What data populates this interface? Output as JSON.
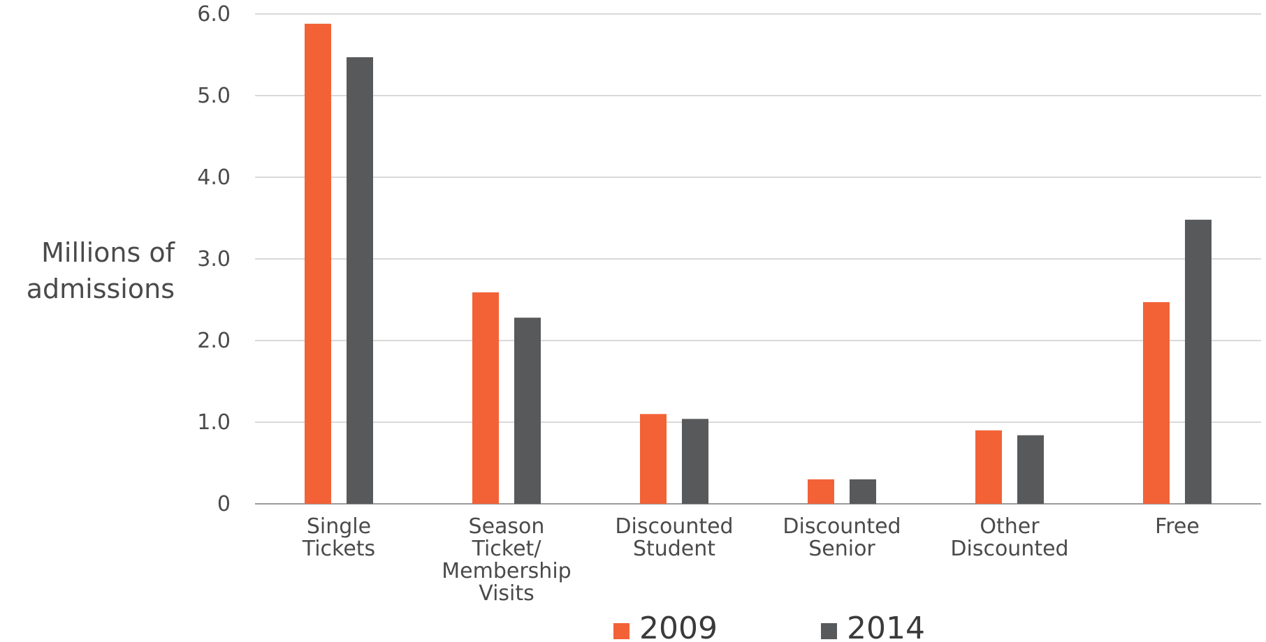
{
  "chart_data": {
    "type": "bar",
    "ylabel": [
      "Millions of",
      "admissions"
    ],
    "ylim": [
      0,
      6
    ],
    "yticks": [
      {
        "value": 0,
        "label": "0"
      },
      {
        "value": 1,
        "label": "1.0"
      },
      {
        "value": 2,
        "label": "2.0"
      },
      {
        "value": 3,
        "label": "3.0"
      },
      {
        "value": 4,
        "label": "4.0"
      },
      {
        "value": 5,
        "label": "5.0"
      },
      {
        "value": 6,
        "label": "6.0"
      }
    ],
    "grid": true,
    "legend_position": "bottom",
    "categories": [
      [
        "Single",
        "Tickets"
      ],
      [
        "Season",
        "Ticket/",
        "Membership",
        "Visits"
      ],
      [
        "Discounted",
        "Student"
      ],
      [
        "Discounted",
        "Senior"
      ],
      [
        "Other",
        "Discounted"
      ],
      [
        "Free"
      ]
    ],
    "series": [
      {
        "name": "2009",
        "color": "#f26236",
        "values": [
          5.88,
          2.59,
          1.1,
          0.3,
          0.9,
          2.47
        ]
      },
      {
        "name": "2014",
        "color": "#58595b",
        "values": [
          5.47,
          2.28,
          1.04,
          0.3,
          0.84,
          3.48
        ]
      }
    ]
  }
}
